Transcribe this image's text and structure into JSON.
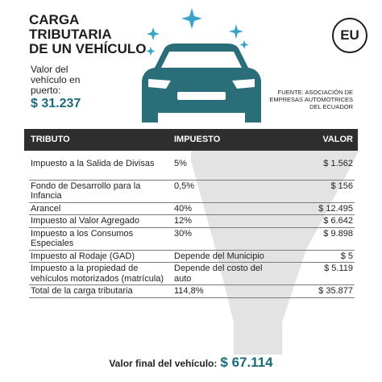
{
  "header": {
    "title": [
      "CARGA",
      "TRIBUTARIA",
      "DE UN VEHÍCULO"
    ],
    "logo": "EU",
    "port_value_label": "Valor del vehículo en puerto:",
    "port_value": "$ 31.237",
    "source": "FUENTE: ASOCIACIÓN DE EMPRESAS AUTOMOTRICES DEL ECUADOR"
  },
  "table": {
    "columns": [
      "TRIBUTO",
      "IMPUESTO",
      "VALOR"
    ],
    "rows": [
      [
        "Impuesto a la Salida de Divisas",
        "5%",
        "$ 1.562"
      ],
      [
        "Fondo de Desarrollo para la Infancia",
        "0,5%",
        "$ 156"
      ],
      [
        "Arancel",
        "40%",
        "$ 12.495"
      ],
      [
        "Impuesto al Valor Agregado",
        "12%",
        "$ 6.642"
      ],
      [
        "Impuesto a los Consumos Especiales",
        "30%",
        "$ 9.898"
      ],
      [
        "Impuesto al Rodaje (GAD)",
        "Depende del Municipio",
        "$ 5"
      ],
      [
        "Impuesto a la propiedad de vehículos motorizados (matrícula)",
        "Depende del costo del auto",
        "$ 5.119"
      ],
      [
        "Total de la carga tributaria",
        "114,8%",
        "$ 35.877"
      ]
    ]
  },
  "footer": {
    "label": "Valor final del vehículo:",
    "value": "$ 67.114"
  }
}
